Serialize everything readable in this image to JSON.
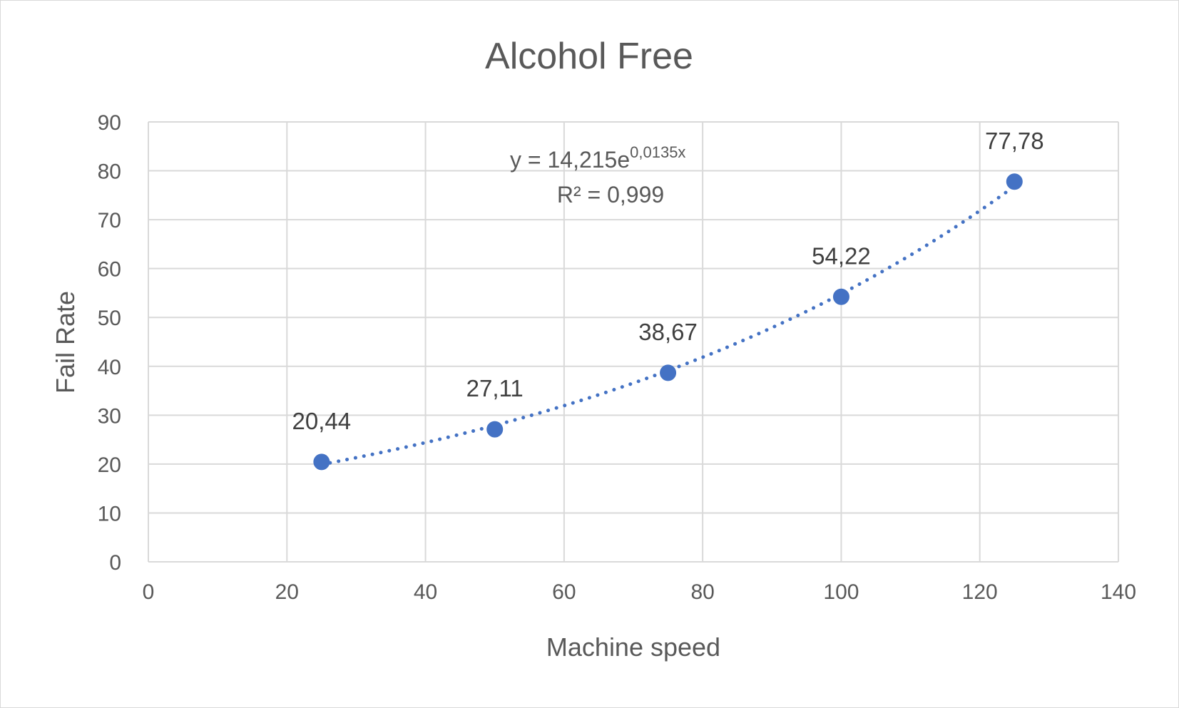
{
  "chart_data": {
    "type": "scatter",
    "title": "Alcohol Free",
    "xlabel": "Machine speed",
    "ylabel": "Fail Rate",
    "xlim": [
      0,
      140
    ],
    "ylim": [
      0,
      90
    ],
    "x_ticks": [
      0,
      20,
      40,
      60,
      80,
      100,
      120,
      140
    ],
    "y_ticks": [
      0,
      10,
      20,
      30,
      40,
      50,
      60,
      70,
      80,
      90
    ],
    "grid": true,
    "legend": "none",
    "series": [
      {
        "x": [
          25,
          50,
          75,
          100,
          125
        ],
        "y": [
          20.44,
          27.11,
          38.67,
          54.22,
          77.78
        ],
        "data_labels": [
          "20,44",
          "27,11",
          "38,67",
          "54,22",
          "77,78"
        ],
        "color": "#4472c4"
      }
    ],
    "trendline": {
      "type": "exponential",
      "a": 14.215,
      "b": 0.0135,
      "style": "dotted",
      "equation_text": {
        "base": "y = 14,215e",
        "exponent": "0,0135x",
        "r_squared": "R² = 0,999"
      }
    }
  }
}
